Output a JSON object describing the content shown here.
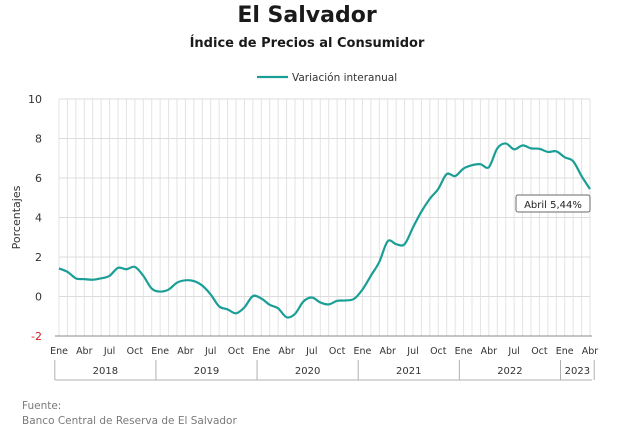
{
  "title": "El Salvador",
  "subtitle": "Índice de Precios al Consumidor",
  "source": {
    "label": "Fuente:",
    "text": "Banco Central de Reserva de El Salvador"
  },
  "chart_data": {
    "type": "line",
    "title": "El Salvador",
    "subtitle": "Índice de Precios al Consumidor",
    "ylabel": "Porcentajes",
    "xlabel": "",
    "ylim": [
      -2,
      10
    ],
    "yticks": [
      -2,
      0,
      2,
      4,
      6,
      8,
      10
    ],
    "grid": true,
    "legend": {
      "position": "top-center",
      "entries": [
        "Variación interanual"
      ]
    },
    "line_color": "#1a9e96",
    "month_tick_labels": [
      "Ene",
      "Abr",
      "Jul",
      "Oct"
    ],
    "years": [
      "2018",
      "2019",
      "2020",
      "2021",
      "2022",
      "2023"
    ],
    "x": [
      "2018-01",
      "2018-02",
      "2018-03",
      "2018-04",
      "2018-05",
      "2018-06",
      "2018-07",
      "2018-08",
      "2018-09",
      "2018-10",
      "2018-11",
      "2018-12",
      "2019-01",
      "2019-02",
      "2019-03",
      "2019-04",
      "2019-05",
      "2019-06",
      "2019-07",
      "2019-08",
      "2019-09",
      "2019-10",
      "2019-11",
      "2019-12",
      "2020-01",
      "2020-02",
      "2020-03",
      "2020-04",
      "2020-05",
      "2020-06",
      "2020-07",
      "2020-08",
      "2020-09",
      "2020-10",
      "2020-11",
      "2020-12",
      "2021-01",
      "2021-02",
      "2021-03",
      "2021-04",
      "2021-05",
      "2021-06",
      "2021-07",
      "2021-08",
      "2021-09",
      "2021-10",
      "2021-11",
      "2021-12",
      "2022-01",
      "2022-02",
      "2022-03",
      "2022-04",
      "2022-05",
      "2022-06",
      "2022-07",
      "2022-08",
      "2022-09",
      "2022-10",
      "2022-11",
      "2022-12",
      "2023-01",
      "2023-02",
      "2023-03",
      "2023-04"
    ],
    "series": [
      {
        "name": "Variación interanual",
        "values": [
          1.42,
          1.25,
          0.92,
          0.88,
          0.85,
          0.92,
          1.05,
          1.45,
          1.38,
          1.5,
          1.05,
          0.4,
          0.25,
          0.35,
          0.7,
          0.82,
          0.78,
          0.55,
          0.1,
          -0.5,
          -0.65,
          -0.85,
          -0.55,
          0.02,
          -0.1,
          -0.42,
          -0.6,
          -1.05,
          -0.88,
          -0.25,
          -0.05,
          -0.3,
          -0.4,
          -0.22,
          -0.2,
          -0.12,
          0.35,
          1.05,
          1.75,
          2.8,
          2.65,
          2.65,
          3.5,
          4.3,
          4.95,
          5.45,
          6.2,
          6.1,
          6.48,
          6.65,
          6.7,
          6.55,
          7.5,
          7.75,
          7.45,
          7.65,
          7.5,
          7.48,
          7.32,
          7.35,
          7.05,
          6.85,
          6.1,
          5.44
        ]
      }
    ],
    "annotation": {
      "text": "Abril 5,44%",
      "x": "2023-04",
      "y": 5.44
    }
  }
}
